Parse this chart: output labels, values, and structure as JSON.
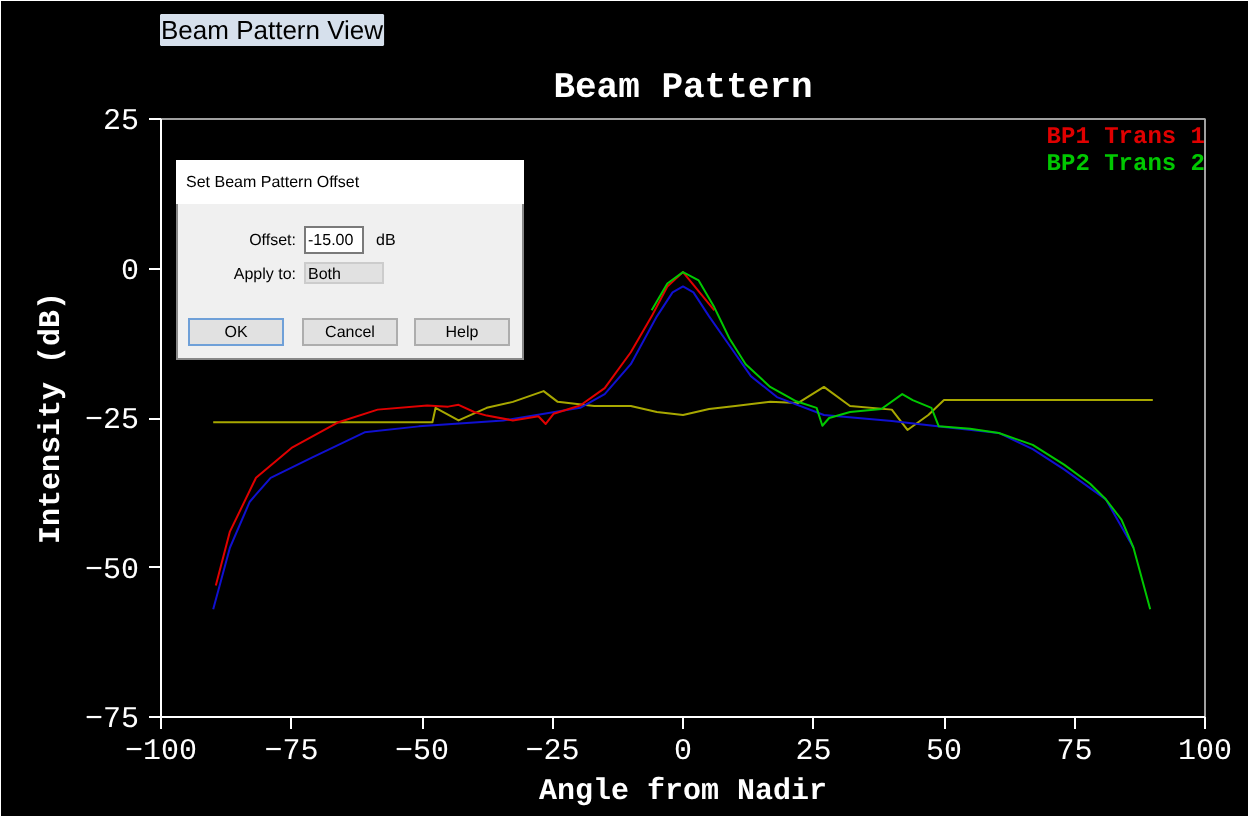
{
  "chart_data": {
    "type": "line",
    "title": "Beam Pattern",
    "xlabel": "Angle from Nadir",
    "ylabel": "Intensity (dB)",
    "xlim": [
      -100,
      100
    ],
    "xticks": [
      -100,
      -75,
      -50,
      -25,
      0,
      25,
      50,
      75,
      100
    ],
    "ylim": [
      -75,
      25
    ],
    "yticks": [
      -75,
      -50,
      -25,
      0,
      25
    ],
    "grid": false,
    "legend": "top right",
    "line_style": "solid",
    "marker": "none",
    "annotations": [
      "Beam Pattern View",
      "Set Beam Pattern Offset",
      "Offset:",
      "-15.00",
      "dB",
      "Apply to:",
      "Both",
      "OK",
      "Cancel",
      "Help"
    ],
    "series": [
      {
        "color": "#a8a800",
        "x": [
          -90,
          -48,
          -47.4,
          -43,
          -37.6,
          -32.6,
          -26.7,
          -24,
          -17,
          -10,
          -5,
          0,
          5,
          10,
          16.7,
          22,
          27,
          32,
          40,
          43,
          47,
          50,
          90
        ],
        "values": [
          -25.7,
          -25.7,
          -23.3,
          -25.4,
          -23.3,
          -22.3,
          -20.5,
          -22.3,
          -23,
          -23,
          -24,
          -24.5,
          -23.5,
          -23,
          -22.3,
          -22.5,
          -19.8,
          -23,
          -23.6,
          -27,
          -24.5,
          -22,
          -22
        ]
      },
      {
        "color": "#1010d0",
        "x": [
          -90,
          -86.8,
          -83,
          -79,
          -71,
          -61,
          -50.6,
          -34.4,
          -19.7,
          -15,
          -10,
          -5,
          -2,
          0,
          2,
          5,
          9,
          13,
          18,
          27,
          40,
          50,
          60.5,
          67,
          73,
          81,
          86.3
        ],
        "values": [
          -57,
          -46.7,
          -39,
          -35,
          -31.6,
          -27.4,
          -26.4,
          -25.4,
          -23.3,
          -21,
          -16,
          -8,
          -4,
          -3,
          -4,
          -8,
          -13,
          -18,
          -21.5,
          -24.5,
          -25.5,
          -26.5,
          -27.5,
          -30.2,
          -33.6,
          -38.6,
          -46.7
        ]
      },
      {
        "name": "BP1 Trans 1",
        "color": "#e00000",
        "x": [
          -89.5,
          -86.8,
          -81.8,
          -75,
          -66,
          -58.5,
          -49,
          -45,
          -43,
          -40,
          -37.6,
          -32.6,
          -27.7,
          -26.3,
          -24.8,
          -19.7,
          -15,
          -10,
          -6,
          -3,
          0,
          6
        ],
        "values": [
          -53,
          -44,
          -35,
          -30,
          -25.7,
          -23.6,
          -22.9,
          -23.1,
          -22.8,
          -24,
          -24.6,
          -25.4,
          -24.7,
          -26,
          -24.3,
          -22.9,
          -20,
          -14,
          -8,
          -3,
          -0.6,
          -7
        ]
      },
      {
        "name": "BP2 Trans 2",
        "color": "#00c800",
        "x": [
          -6,
          -3,
          0,
          3,
          6,
          8.9,
          12,
          16.7,
          21.7,
          25.6,
          26.7,
          28,
          32,
          38,
          42,
          44,
          47.6,
          49,
          55,
          60.5,
          67,
          73,
          78,
          81,
          84,
          86.3,
          89.5
        ],
        "values": [
          -7,
          -2.5,
          -0.6,
          -2,
          -6.5,
          -11.7,
          -16,
          -19.8,
          -22.2,
          -23.3,
          -26.3,
          -25,
          -24,
          -23.5,
          -21,
          -22,
          -23.3,
          -26.4,
          -26.8,
          -27.5,
          -29.5,
          -32.8,
          -36,
          -38.6,
          -42,
          -46.7,
          -57
        ]
      }
    ]
  }
}
